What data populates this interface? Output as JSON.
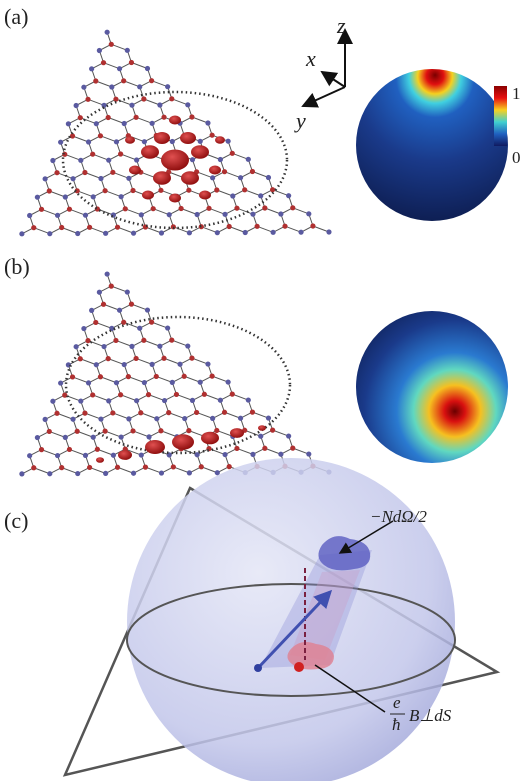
{
  "panel_a": {
    "label": "(a)",
    "axes": {
      "z": "z",
      "x": "x",
      "y": "y"
    },
    "colorbar": {
      "top": "1",
      "bottom": "0"
    }
  },
  "panel_b": {
    "label": "(b)"
  },
  "panel_c": {
    "label": "(c)",
    "annotation_top": "−NdΩ/2",
    "annotation_bottom": {
      "numerator": "e",
      "denominator": "ħ",
      "rest": "B⊥dS"
    }
  }
}
